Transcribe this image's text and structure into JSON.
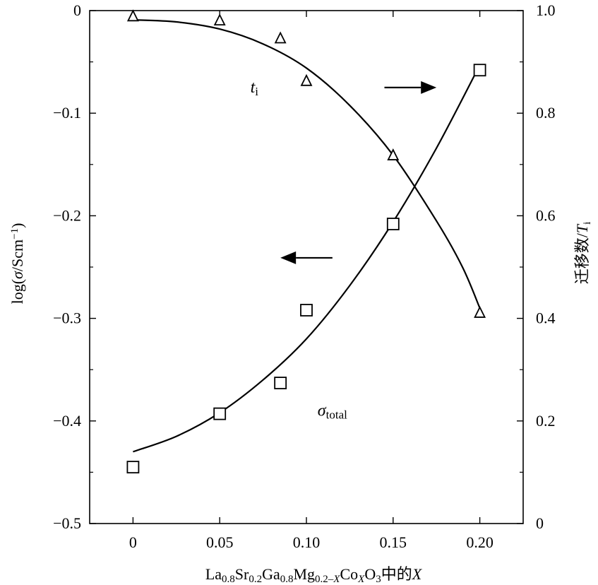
{
  "chart_data": {
    "type": "scatter",
    "x_ticks": [
      0,
      0.05,
      0.1,
      0.15,
      0.2
    ],
    "x_tick_labels": [
      "0",
      "0.05",
      "0.10",
      "0.15",
      "0.20"
    ],
    "xlim": [
      -0.025,
      0.225
    ],
    "y_left_ticks": [
      0,
      -0.1,
      -0.2,
      -0.3,
      -0.4,
      -0.5
    ],
    "y_left_tick_labels": [
      "0",
      "−0.1",
      "−0.2",
      "−0.3",
      "−0.4",
      "−0.5"
    ],
    "ylim_left": [
      -0.5,
      0
    ],
    "y_right_ticks": [
      1.0,
      0.8,
      0.6,
      0.4,
      0.2,
      0
    ],
    "y_right_tick_labels": [
      "1.0",
      "0.8",
      "0.6",
      "0.4",
      "0.2",
      "0"
    ],
    "ylim_right": [
      0,
      1.0
    ],
    "xlabel": {
      "parts": [
        {
          "t": "La",
          "s": "n"
        },
        {
          "t": "0.8",
          "s": "sub"
        },
        {
          "t": "Sr",
          "s": "n"
        },
        {
          "t": "0.2",
          "s": "sub"
        },
        {
          "t": "Ga",
          "s": "n"
        },
        {
          "t": "0.8",
          "s": "sub"
        },
        {
          "t": "Mg",
          "s": "n"
        },
        {
          "t": "0.2–",
          "s": "sub"
        },
        {
          "t": "X",
          "s": "subi"
        },
        {
          "t": "Co",
          "s": "n"
        },
        {
          "t": "X",
          "s": "subi"
        },
        {
          "t": "O",
          "s": "n"
        },
        {
          "t": "3",
          "s": "sub"
        },
        {
          "t": "中的",
          "s": "n"
        },
        {
          "t": "X",
          "s": "i"
        }
      ]
    },
    "ylabel_left": {
      "parts": [
        {
          "t": "log(",
          "s": "n"
        },
        {
          "t": "σ",
          "s": "i"
        },
        {
          "t": "/Scm",
          "s": "n"
        },
        {
          "t": "−1",
          "s": "sup"
        },
        {
          "t": ")",
          "s": "n"
        }
      ]
    },
    "ylabel_right": {
      "parts": [
        {
          "t": "迁移数/",
          "s": "n"
        },
        {
          "t": "T",
          "s": "i"
        },
        {
          "t": "i",
          "s": "sub"
        }
      ]
    },
    "series": [
      {
        "axis": "left",
        "marker": "square",
        "points": [
          {
            "x": 0,
            "y": -0.445
          },
          {
            "x": 0.05,
            "y": -0.393
          },
          {
            "x": 0.085,
            "y": -0.363
          },
          {
            "x": 0.1,
            "y": -0.292
          },
          {
            "x": 0.15,
            "y": -0.208
          },
          {
            "x": 0.2,
            "y": -0.058
          }
        ],
        "curve": [
          {
            "x": 0,
            "y": -0.43
          },
          {
            "x": 0.025,
            "y": -0.415
          },
          {
            "x": 0.05,
            "y": -0.392
          },
          {
            "x": 0.075,
            "y": -0.36
          },
          {
            "x": 0.1,
            "y": -0.32
          },
          {
            "x": 0.125,
            "y": -0.268
          },
          {
            "x": 0.15,
            "y": -0.206
          },
          {
            "x": 0.175,
            "y": -0.134
          },
          {
            "x": 0.2,
            "y": -0.053
          }
        ]
      },
      {
        "axis": "right",
        "marker": "triangle",
        "points": [
          {
            "x": 0,
            "y": 0.988
          },
          {
            "x": 0.05,
            "y": 0.98
          },
          {
            "x": 0.085,
            "y": 0.945
          },
          {
            "x": 0.1,
            "y": 0.862
          },
          {
            "x": 0.15,
            "y": 0.717
          },
          {
            "x": 0.2,
            "y": 0.41
          }
        ],
        "curve": [
          {
            "x": 0,
            "y": 0.982
          },
          {
            "x": 0.025,
            "y": 0.978
          },
          {
            "x": 0.05,
            "y": 0.964
          },
          {
            "x": 0.075,
            "y": 0.935
          },
          {
            "x": 0.1,
            "y": 0.888
          },
          {
            "x": 0.125,
            "y": 0.815
          },
          {
            "x": 0.15,
            "y": 0.718
          },
          {
            "x": 0.175,
            "y": 0.59
          },
          {
            "x": 0.19,
            "y": 0.5
          },
          {
            "x": 0.2,
            "y": 0.42
          }
        ]
      }
    ],
    "annotations": [
      {
        "id": "ti",
        "main": "t",
        "sub": "i",
        "x": 0.07,
        "y_left": -0.08
      },
      {
        "id": "sigma",
        "main": "σ",
        "sub": "total",
        "x": 0.115,
        "y_left": -0.395
      }
    ],
    "arrows": [
      {
        "id": "right-arrow",
        "direction": "right",
        "x_from": 0.145,
        "x_to": 0.175,
        "y_left": -0.075
      },
      {
        "id": "left-arrow",
        "direction": "left",
        "x_from": 0.115,
        "x_to": 0.085,
        "y_left": -0.241
      }
    ],
    "grid": false
  }
}
